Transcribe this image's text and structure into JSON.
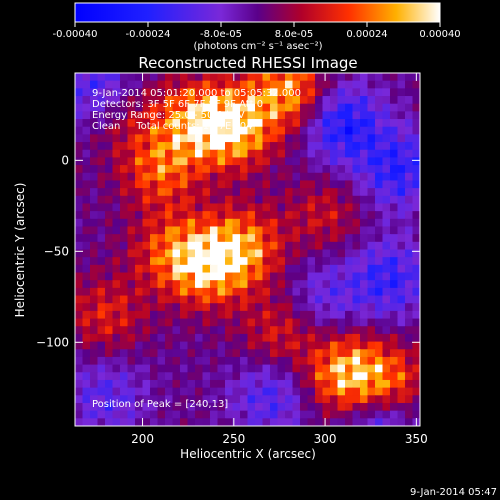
{
  "colorbar": {
    "tick_labels": [
      "-0.00040",
      "-0.00024",
      "-8.0e-05",
      "8.0e-05",
      "0.00024",
      "0.00040"
    ],
    "range": [
      -0.0004,
      0.0004
    ],
    "unit_label": "(photons cm⁻² s⁻¹ asec⁻²)"
  },
  "chart_data": {
    "type": "heatmap",
    "title": "Reconstructed RHESSI Image",
    "xlabel": "Heliocentric X (arcsec)",
    "ylabel": "Heliocentric Y (arcsec)",
    "xlim": [
      163,
      352
    ],
    "ylim": [
      -146,
      48
    ],
    "x_ticks": [
      200,
      250,
      300,
      350
    ],
    "y_ticks": [
      -100,
      -50,
      0
    ],
    "x_tick_labels": [
      "200",
      "250",
      "300",
      "350"
    ],
    "y_tick_labels": [
      "−100",
      "−50",
      "0"
    ],
    "grid": false,
    "annotations": [
      "9-Jan-2014 05:01:20.000 to 05:05:32.000",
      "Detectors: 3F 5F 6F 7F 8F 9F Att 0",
      "Energy Range: 25.0 - 50.0 keV",
      "Clean     Total counts: 1.77E+04"
    ],
    "peak_label": "Position of Peak = [240,13]",
    "peak": [
      240,
      13
    ],
    "hotspots": [
      {
        "x": 250,
        "y": 18,
        "level": 0.00034
      },
      {
        "x": 228,
        "y": 22,
        "level": 0.00025
      },
      {
        "x": 280,
        "y": 38,
        "level": 0.00028
      },
      {
        "x": 210,
        "y": -5,
        "level": 0.00022
      },
      {
        "x": 235,
        "y": -58,
        "level": 0.0003
      },
      {
        "x": 255,
        "y": -48,
        "level": 0.00026
      },
      {
        "x": 215,
        "y": -50,
        "level": 0.00018
      },
      {
        "x": 180,
        "y": -85,
        "level": 0.00015
      },
      {
        "x": 312,
        "y": -118,
        "level": 0.00032
      },
      {
        "x": 335,
        "y": -125,
        "level": 0.00026
      },
      {
        "x": 275,
        "y": -95,
        "level": 0.00014
      },
      {
        "x": 300,
        "y": -30,
        "level": 0.00012
      },
      {
        "x": 190,
        "y": 25,
        "level": 0.0001
      }
    ],
    "coldspots": [
      {
        "x": 310,
        "y": 20,
        "level": -0.00026
      },
      {
        "x": 340,
        "y": -5,
        "level": -0.00022
      },
      {
        "x": 175,
        "y": 40,
        "level": -0.00018
      },
      {
        "x": 335,
        "y": -65,
        "level": -0.0002
      },
      {
        "x": 270,
        "y": -130,
        "level": -0.00016
      },
      {
        "x": 180,
        "y": -130,
        "level": -0.00014
      },
      {
        "x": 330,
        "y": -140,
        "level": -0.00024
      },
      {
        "x": 300,
        "y": -75,
        "level": -0.00012
      }
    ]
  },
  "footer": {
    "timestamp": "9-Jan-2014 05:47"
  }
}
